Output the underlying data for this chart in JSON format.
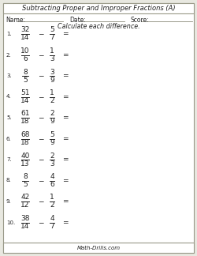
{
  "title": "Subtracting Proper and Improper Fractions (A)",
  "subtitle": "Calculate each difference.",
  "name_label": "Name:",
  "date_label": "Date:",
  "score_label": "Score:",
  "footer": "Math-Drills.com",
  "problems": [
    {
      "num1": "32",
      "den1": "14",
      "num2": "5",
      "den2": "7"
    },
    {
      "num1": "10",
      "den1": "6",
      "num2": "1",
      "den2": "3"
    },
    {
      "num1": "8",
      "den1": "5",
      "num2": "3",
      "den2": "9"
    },
    {
      "num1": "51",
      "den1": "14",
      "num2": "1",
      "den2": "2"
    },
    {
      "num1": "61",
      "den1": "18",
      "num2": "2",
      "den2": "9"
    },
    {
      "num1": "68",
      "den1": "18",
      "num2": "5",
      "den2": "9"
    },
    {
      "num1": "40",
      "den1": "13",
      "num2": "2",
      "den2": "3"
    },
    {
      "num1": "8",
      "den1": "5",
      "num2": "4",
      "den2": "6"
    },
    {
      "num1": "42",
      "den1": "12",
      "num2": "1",
      "den2": "2"
    },
    {
      "num1": "38",
      "den1": "14",
      "num2": "4",
      "den2": "7"
    }
  ],
  "bg_color": "#e8e8e0",
  "inner_bg": "#ffffff",
  "border_color": "#999988",
  "text_color": "#222222",
  "title_fontsize": 6.0,
  "problem_fontsize": 6.5,
  "label_fontsize": 5.5,
  "footer_fontsize": 5.0
}
